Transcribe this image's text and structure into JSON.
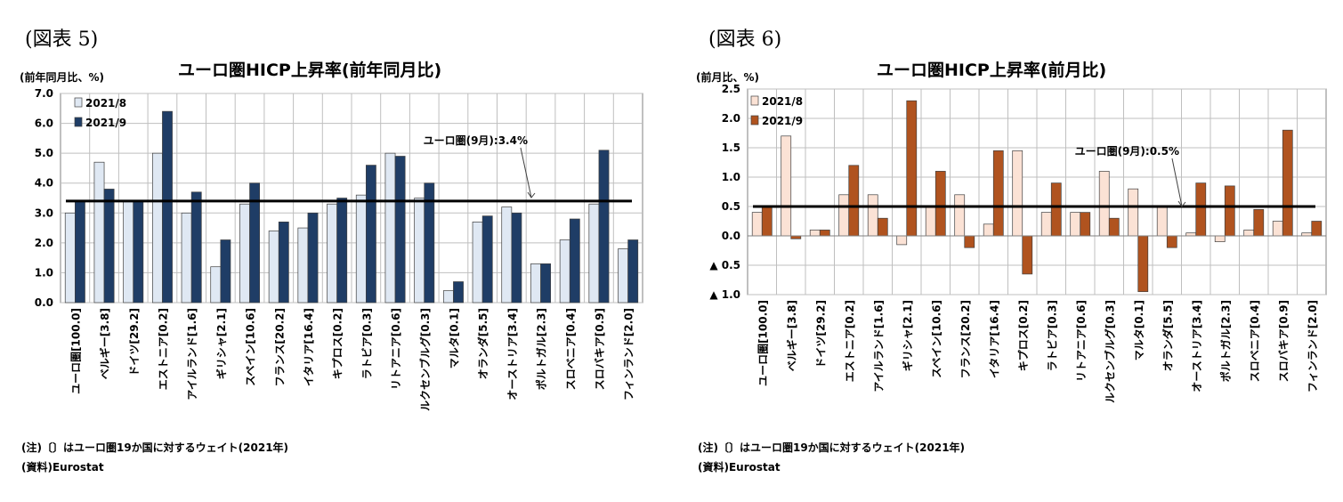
{
  "charts": [
    {
      "figure_label": "(図表 5)",
      "unit_label": "(前年同月比、%)",
      "note": "(注)〔〕はユーロ圏19か国に対するウェイト(2021年)",
      "source": "(資料)Eurostat",
      "annotation": "ユーロ圏(9月):3.4%"
    },
    {
      "figure_label": "(図表 6)",
      "unit_label": "(前月比、%)",
      "note": "(注)〔〕はユーロ圏19か国に対するウェイト(2021年)",
      "source": "(資料)Eurostat",
      "annotation": "ユーロ圏(9月):0.5%"
    }
  ],
  "colors": {
    "chart1_series1": "#dfe8f3",
    "chart1_series2": "#1f3d66",
    "chart2_series1": "#fbe2d5",
    "chart2_series2": "#b0531f",
    "reference_line": "#000000",
    "grid": "#bfbfbf"
  },
  "chart_data": [
    {
      "type": "bar",
      "title": "ユーロ圏HICP上昇率(前年同月比)",
      "ylabel": "(前年同月比、%)",
      "xlabel": "",
      "categories": [
        "ユーロ圏[100.0]",
        "ベルギー[3.8]",
        "ドイツ[29.2]",
        "エストニア[0.2]",
        "アイルランド[1.6]",
        "ギリシャ[2.1]",
        "スペイン[10.6]",
        "フランス[20.2]",
        "イタリア[16.4]",
        "キプロス[0.2]",
        "ラトビア[0.3]",
        "リトアニア[0.6]",
        "ルクセンブルグ[0.3]",
        "マルタ[0.1]",
        "オランダ[5.5]",
        "オーストリア[3.4]",
        "ポルトガル[2.3]",
        "スロベニア[0.4]",
        "スロバキア[0.9]",
        "フィンランド[2.0]"
      ],
      "series": [
        {
          "name": "2021/8",
          "values": [
            3.0,
            4.7,
            3.4,
            5.0,
            3.0,
            1.2,
            3.3,
            2.4,
            2.5,
            3.3,
            3.6,
            5.0,
            3.5,
            0.4,
            2.7,
            3.2,
            1.3,
            2.1,
            3.3,
            1.8
          ]
        },
        {
          "name": "2021/9",
          "values": [
            3.4,
            3.8,
            3.4,
            6.4,
            3.7,
            2.1,
            4.0,
            2.7,
            3.0,
            3.5,
            4.6,
            4.9,
            4.0,
            0.7,
            2.9,
            3.0,
            1.3,
            2.8,
            5.1,
            2.1
          ]
        }
      ],
      "reference_line": 3.4,
      "annotation": "ユーロ圏(9月):3.4%",
      "ylim": [
        0,
        7
      ],
      "yticks": [
        0,
        1,
        2,
        3,
        4,
        5,
        6,
        7
      ],
      "ytick_labels": [
        "0.0",
        "1.0",
        "2.0",
        "3.0",
        "4.0",
        "5.0",
        "6.0",
        "7.0"
      ],
      "grid": true,
      "legend": "top-left"
    },
    {
      "type": "bar",
      "title": "ユーロ圏HICP上昇率(前月比)",
      "ylabel": "(前月比、%)",
      "xlabel": "",
      "categories": [
        "ユーロ圏[100.0]",
        "ベルギー[3.8]",
        "ドイツ[29.2]",
        "エストニア[0.2]",
        "アイルランド[1.6]",
        "ギリシャ[2.1]",
        "スペイン[10.6]",
        "フランス[20.2]",
        "イタリア[16.4]",
        "キプロス[0.2]",
        "ラトビア[0.3]",
        "リトアニア[0.6]",
        "ルクセンブルグ[0.3]",
        "マルタ[0.1]",
        "オランダ[5.5]",
        "オーストリア[3.4]",
        "ポルトガル[2.3]",
        "スロベニア[0.4]",
        "スロバキア[0.9]",
        "フィンランド[2.0]"
      ],
      "series": [
        {
          "name": "2021/8",
          "values": [
            0.4,
            1.7,
            0.1,
            0.7,
            0.7,
            -0.15,
            0.5,
            0.7,
            0.2,
            1.45,
            0.4,
            0.4,
            1.1,
            0.8,
            0.5,
            0.05,
            -0.1,
            0.1,
            0.25,
            0.05
          ]
        },
        {
          "name": "2021/9",
          "values": [
            0.5,
            -0.05,
            0.1,
            1.2,
            0.3,
            2.3,
            1.1,
            -0.2,
            1.45,
            -0.65,
            0.9,
            0.4,
            0.3,
            -0.95,
            -0.2,
            0.9,
            0.85,
            0.45,
            1.8,
            0.25
          ]
        }
      ],
      "reference_line": 0.5,
      "annotation": "ユーロ圏(9月):0.5%",
      "ylim": [
        -1,
        2.5
      ],
      "yticks": [
        -1,
        -0.5,
        0,
        0.5,
        1,
        1.5,
        2,
        2.5
      ],
      "ytick_labels": [
        "▲ 1.0",
        "▲ 0.5",
        "0.0",
        "0.5",
        "1.0",
        "1.5",
        "2.0",
        "2.5"
      ],
      "grid": true,
      "legend": "top-left"
    }
  ]
}
